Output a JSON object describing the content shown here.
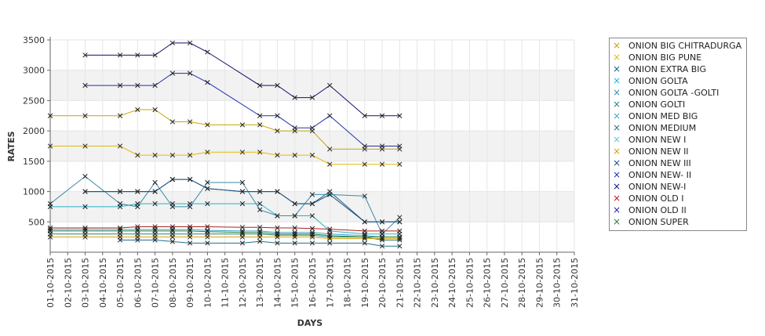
{
  "chart_data": {
    "type": "line",
    "xlabel": "DAYS",
    "ylabel": "RATES",
    "ylim": [
      0,
      3500
    ],
    "yticks": [
      500,
      1000,
      1500,
      2000,
      2500,
      3000,
      3500
    ],
    "grid": "alternating horizontal bands",
    "legend_position": "right",
    "marker": "×",
    "x": [
      "01-10-2015",
      "02-10-2015",
      "03-10-2015",
      "04-10-2015",
      "05-10-2015",
      "06-10-2015",
      "07-10-2015",
      "08-10-2015",
      "09-10-2015",
      "10-10-2015",
      "11-10-2015",
      "12-10-2015",
      "13-10-2015",
      "14-10-2015",
      "15-10-2015",
      "16-10-2015",
      "17-10-2015",
      "18-10-2015",
      "19-10-2015",
      "20-10-2015",
      "21-10-2015",
      "22-10-2015",
      "23-10-2015",
      "24-10-2015",
      "25-10-2015",
      "26-10-2015",
      "27-10-2015",
      "28-10-2015",
      "29-10-2015",
      "30-10-2015",
      "31-10-2015"
    ],
    "series": [
      {
        "name": "ONION BIG CHITRADURGA",
        "color": "#c8a400",
        "values": [
          2250,
          null,
          2250,
          null,
          2250,
          2350,
          2350,
          2150,
          2150,
          2100,
          null,
          2100,
          2100,
          2000,
          2000,
          2000,
          1700,
          null,
          1700,
          1700,
          1700,
          null,
          null,
          null,
          null,
          null,
          null,
          null,
          null,
          null,
          null
        ]
      },
      {
        "name": "ONION BIG PUNE",
        "color": "#e6b800",
        "values": [
          1750,
          null,
          1750,
          null,
          1750,
          1600,
          1600,
          1600,
          1600,
          1650,
          null,
          1650,
          1650,
          1600,
          1600,
          1600,
          1450,
          null,
          1450,
          1450,
          1450,
          null,
          null,
          null,
          null,
          null,
          null,
          null,
          null,
          null,
          null
        ]
      },
      {
        "name": "ONION EXTRA BIG",
        "color": "#1a5f8a",
        "values": [
          null,
          null,
          1000,
          null,
          1000,
          1000,
          1000,
          1200,
          1200,
          1050,
          null,
          1000,
          1000,
          1000,
          800,
          800,
          1000,
          null,
          500,
          500,
          500,
          null,
          null,
          null,
          null,
          null,
          null,
          null,
          null,
          null,
          null
        ]
      },
      {
        "name": "ONION GOLTA",
        "color": "#2ab0c8",
        "values": [
          750,
          null,
          750,
          null,
          750,
          800,
          800,
          800,
          800,
          800,
          null,
          800,
          800,
          600,
          600,
          600,
          350,
          null,
          300,
          300,
          300,
          null,
          null,
          null,
          null,
          null,
          null,
          null,
          null,
          null,
          null
        ]
      },
      {
        "name": "ONION GOLTA -GOLTI",
        "color": "#3a8aa8",
        "values": [
          800,
          null,
          1250,
          null,
          800,
          750,
          1150,
          750,
          750,
          1150,
          null,
          1150,
          700,
          600,
          600,
          950,
          950,
          null,
          925,
          300,
          575,
          null,
          null,
          null,
          null,
          null,
          null,
          null,
          null,
          null,
          null
        ]
      },
      {
        "name": "ONION GOLTI",
        "color": "#2e7d7d",
        "values": [
          300,
          null,
          300,
          null,
          300,
          300,
          300,
          300,
          300,
          300,
          null,
          300,
          300,
          280,
          280,
          280,
          250,
          null,
          250,
          200,
          200,
          null,
          null,
          null,
          null,
          null,
          null,
          null,
          null,
          null,
          null
        ]
      },
      {
        "name": "ONION MED BIG",
        "color": "#3aa6c8",
        "values": [
          375,
          null,
          375,
          null,
          375,
          375,
          375,
          375,
          375,
          360,
          null,
          350,
          350,
          325,
          325,
          325,
          300,
          null,
          275,
          250,
          250,
          null,
          null,
          null,
          null,
          null,
          null,
          null,
          null,
          null,
          null
        ]
      },
      {
        "name": "ONION MEDIUM",
        "color": "#207090",
        "values": [
          null,
          null,
          null,
          null,
          200,
          200,
          200,
          175,
          150,
          150,
          null,
          150,
          180,
          150,
          150,
          150,
          150,
          null,
          150,
          100,
          100,
          null,
          null,
          null,
          null,
          null,
          null,
          null,
          null,
          null,
          null
        ]
      },
      {
        "name": "ONION NEW I",
        "color": "#5cc8e0",
        "values": [
          null,
          null,
          null,
          null,
          null,
          null,
          null,
          null,
          null,
          null,
          null,
          null,
          null,
          null,
          null,
          null,
          null,
          null,
          null,
          null,
          null,
          null,
          null,
          null,
          null,
          null,
          null,
          null,
          null,
          null,
          null
        ]
      },
      {
        "name": "ONION NEW II",
        "color": "#d4a000",
        "values": [
          250,
          null,
          250,
          null,
          250,
          250,
          250,
          250,
          250,
          250,
          null,
          250,
          250,
          250,
          250,
          250,
          225,
          null,
          225,
          225,
          225,
          null,
          null,
          null,
          null,
          null,
          null,
          null,
          null,
          null,
          null
        ]
      },
      {
        "name": "ONION NEW III",
        "color": "#1a4f7a",
        "values": [
          null,
          null,
          1000,
          null,
          1000,
          1000,
          1000,
          1200,
          1200,
          1050,
          null,
          1000,
          1000,
          1000,
          800,
          800,
          950,
          null,
          500,
          500,
          500,
          null,
          null,
          null,
          null,
          null,
          null,
          null,
          null,
          null,
          null
        ]
      },
      {
        "name": "ONION NEW- II",
        "color": "#2030b0",
        "values": [
          null,
          null,
          2750,
          null,
          2750,
          2750,
          2750,
          2950,
          2950,
          2800,
          null,
          null,
          2250,
          2250,
          2050,
          2050,
          2250,
          null,
          1750,
          1750,
          1750,
          null,
          null,
          null,
          null,
          null,
          null,
          null,
          null,
          null,
          null
        ]
      },
      {
        "name": "ONION NEW-I",
        "color": "#101070",
        "values": [
          null,
          null,
          3250,
          null,
          3250,
          3250,
          3250,
          3450,
          3450,
          3300,
          null,
          null,
          2750,
          2750,
          2550,
          2550,
          2750,
          null,
          2250,
          2250,
          2250,
          null,
          null,
          null,
          null,
          null,
          null,
          null,
          null,
          null,
          null
        ]
      },
      {
        "name": "ONION OLD I",
        "color": "#b02020",
        "values": [
          400,
          null,
          400,
          null,
          400,
          420,
          420,
          420,
          420,
          420,
          null,
          410,
          410,
          400,
          400,
          390,
          380,
          null,
          350,
          350,
          350,
          null,
          null,
          null,
          null,
          null,
          null,
          null,
          null,
          null,
          null
        ]
      },
      {
        "name": "ONION OLD II",
        "color": "#2020c0",
        "values": [
          null,
          null,
          null,
          null,
          null,
          null,
          null,
          null,
          null,
          null,
          null,
          null,
          null,
          null,
          null,
          null,
          null,
          null,
          null,
          null,
          null,
          null,
          null,
          null,
          null,
          null,
          null,
          null,
          null,
          null,
          null
        ]
      },
      {
        "name": "ONION SUPER",
        "color": "#208040",
        "values": [
          350,
          null,
          350,
          null,
          350,
          350,
          350,
          350,
          350,
          340,
          null,
          325,
          325,
          300,
          300,
          300,
          275,
          null,
          250,
          250,
          250,
          null,
          null,
          null,
          null,
          null,
          null,
          null,
          null,
          null,
          null
        ]
      }
    ]
  }
}
